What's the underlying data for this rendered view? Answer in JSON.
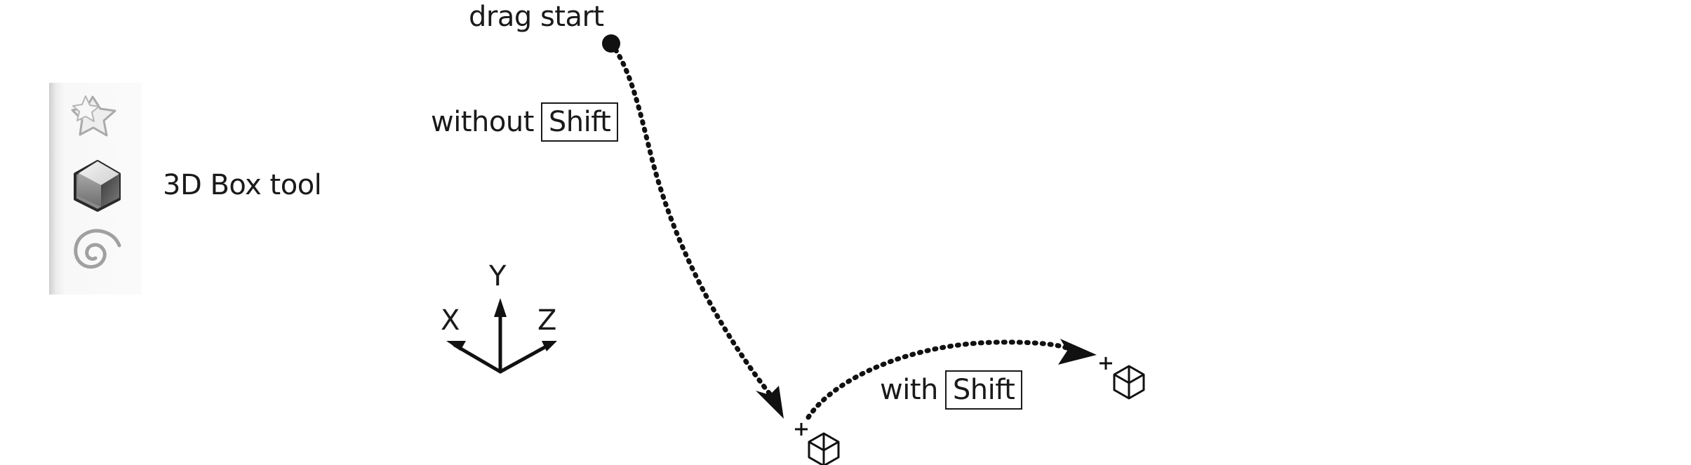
{
  "labels": {
    "drag_start": "drag start",
    "without": "without",
    "with": "with",
    "shift_key": "Shift",
    "tool_name": "3D Box tool"
  },
  "axes": {
    "x": "X",
    "y": "Y",
    "z": "Z"
  },
  "toolbar": {
    "icons": [
      "star-polygon-tool-icon",
      "3d-box-tool-icon",
      "spiral-tool-icon"
    ],
    "active": "3d-box-tool-icon"
  },
  "colors": {
    "ink": "#1a1a1a",
    "toolbar_bg": "#f8f8f8"
  }
}
